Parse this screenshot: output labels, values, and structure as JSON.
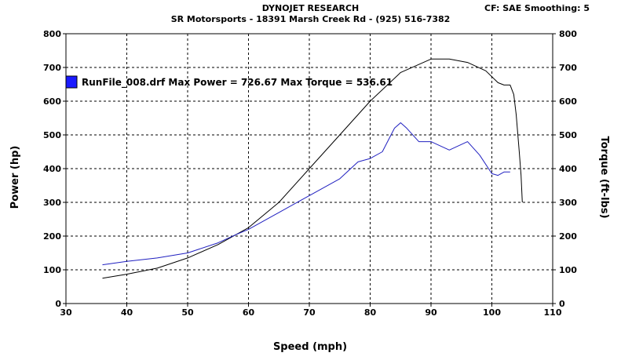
{
  "header": {
    "title": "DYNOJET RESEARCH",
    "subtitle": "SR Motorsports - 18391 Marsh Creek Rd - (925) 516-7382",
    "correction": "CF: SAE  Smoothing: 5"
  },
  "legend": {
    "text": "RunFile_008.drf Max Power = 726.67     Max Torque = 536.61",
    "swatch_color": "#1a1aff"
  },
  "chart_data": {
    "type": "line",
    "xlabel": "Speed (mph)",
    "ylabel": "Power (hp)",
    "y2label": "Torque (ft-lbs)",
    "xlim": [
      30,
      110
    ],
    "ylim": [
      0,
      800
    ],
    "y2lim": [
      0,
      800
    ],
    "xticks": [
      30,
      40,
      50,
      60,
      70,
      80,
      90,
      100,
      110
    ],
    "yticks": [
      0,
      100,
      200,
      300,
      400,
      500,
      600,
      700,
      800
    ],
    "y2ticks": [
      0,
      100,
      200,
      300,
      400,
      500,
      600,
      700,
      800
    ],
    "grid": true,
    "legend_position": "top-left",
    "series": [
      {
        "color": "#000000",
        "axis": "left",
        "x": [
          36,
          40,
          45,
          50,
          55,
          60,
          65,
          70,
          75,
          80,
          85,
          90,
          93,
          96,
          99,
          101,
          102,
          103,
          103.6,
          104,
          104.5,
          104.8,
          105
        ],
        "y": [
          75,
          87,
          105,
          135,
          175,
          225,
          300,
          400,
          500,
          600,
          685,
          725,
          725,
          715,
          690,
          655,
          648,
          648,
          620,
          560,
          450,
          380,
          300
        ]
      },
      {
        "color": "#2020c0",
        "axis": "right",
        "x": [
          36,
          40,
          45,
          50,
          55,
          58,
          60,
          65,
          70,
          75,
          78,
          80,
          82,
          84,
          85,
          86,
          88,
          90,
          93,
          96,
          98,
          100,
          101,
          102,
          103
        ],
        "y": [
          115,
          125,
          135,
          150,
          180,
          205,
          220,
          270,
          320,
          370,
          420,
          430,
          450,
          520,
          536,
          520,
          480,
          480,
          455,
          480,
          440,
          385,
          380,
          390,
          390
        ]
      }
    ]
  }
}
